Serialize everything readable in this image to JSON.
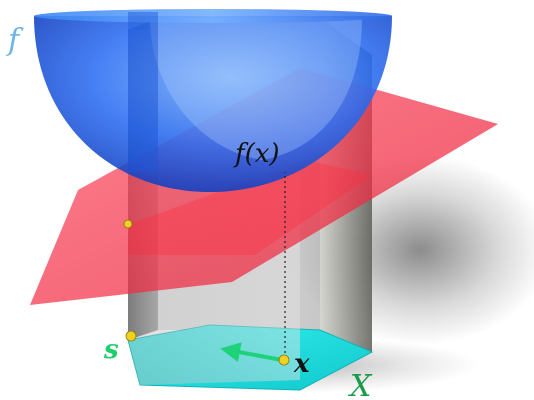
{
  "labels": {
    "function": "f",
    "value": "f(x)",
    "point_x": "x",
    "point_s": "s",
    "set": "X"
  },
  "colors": {
    "bowl": "#2f6ff0",
    "plane": "#f0283c",
    "prism": "#8c8c8c",
    "base": "#18e0e0",
    "arrow": "#1ed27a",
    "point": "#f0d020",
    "label_f": "#6cb4e8",
    "label_s": "#1fcf6a",
    "label_X": "#1a9a4a",
    "label_text": "#111111"
  }
}
